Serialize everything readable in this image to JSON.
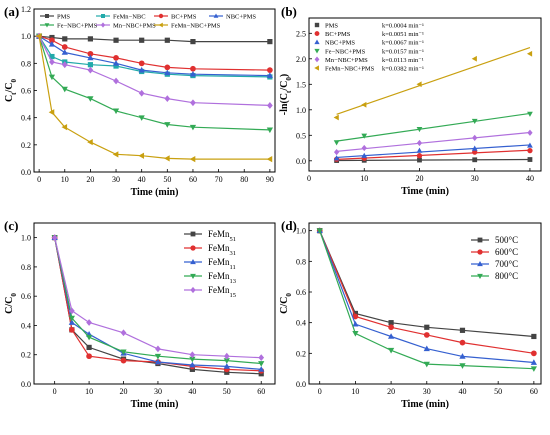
{
  "panels": [
    {
      "label": "(a)",
      "chart_data": {
        "type": "line",
        "xlabel": "Time (min)",
        "ylabel": "C_t/C_0",
        "xlim": [
          -2,
          92
        ],
        "ylim": [
          0,
          1.2
        ],
        "xticks": [
          0,
          10,
          20,
          30,
          40,
          50,
          60,
          70,
          80,
          90
        ],
        "yticks": [
          0.0,
          0.2,
          0.4,
          0.6,
          0.8,
          1.0,
          1.2
        ],
        "legend_position": "top",
        "series": [
          {
            "name": "PMS",
            "color": "#444444",
            "marker": "square",
            "x": [
              0,
              5,
              10,
              20,
              30,
              40,
              50,
              60,
              90
            ],
            "y": [
              1.0,
              0.99,
              0.98,
              0.98,
              0.97,
              0.97,
              0.97,
              0.96,
              0.96
            ]
          },
          {
            "name": "FeMn−NBC",
            "color": "#22aaaa",
            "marker": "square",
            "x": [
              0,
              5,
              10,
              20,
              30,
              40,
              50,
              60,
              90
            ],
            "y": [
              1.0,
              0.85,
              0.81,
              0.79,
              0.78,
              0.74,
              0.72,
              0.71,
              0.7
            ]
          },
          {
            "name": "BC+PMS",
            "color": "#e03030",
            "marker": "circle",
            "x": [
              0,
              5,
              10,
              20,
              30,
              40,
              50,
              60,
              90
            ],
            "y": [
              1.0,
              0.97,
              0.92,
              0.87,
              0.84,
              0.8,
              0.77,
              0.76,
              0.75
            ]
          },
          {
            "name": "NBC+PMS",
            "color": "#3560d0",
            "marker": "triangle-up",
            "x": [
              0,
              5,
              10,
              20,
              30,
              40,
              50,
              60,
              90
            ],
            "y": [
              1.0,
              0.94,
              0.88,
              0.84,
              0.8,
              0.75,
              0.73,
              0.72,
              0.71
            ]
          },
          {
            "name": "Fe−NBC+PMS",
            "color": "#33aa55",
            "marker": "triangle-down",
            "x": [
              0,
              5,
              10,
              20,
              30,
              40,
              50,
              60,
              90
            ],
            "y": [
              1.0,
              0.7,
              0.61,
              0.54,
              0.45,
              0.4,
              0.35,
              0.33,
              0.31
            ]
          },
          {
            "name": "Mn−NBC+PMS",
            "color": "#b070dd",
            "marker": "diamond",
            "x": [
              0,
              5,
              10,
              20,
              30,
              40,
              50,
              60,
              90
            ],
            "y": [
              1.0,
              0.81,
              0.79,
              0.75,
              0.67,
              0.58,
              0.54,
              0.51,
              0.49
            ]
          },
          {
            "name": "FeMn−NBC+PMS",
            "color": "#c9a010",
            "marker": "triangle-left",
            "x": [
              0,
              5,
              10,
              20,
              30,
              40,
              50,
              60,
              90
            ],
            "y": [
              1.0,
              0.44,
              0.33,
              0.22,
              0.13,
              0.12,
              0.1,
              0.095,
              0.095
            ]
          }
        ]
      }
    },
    {
      "label": "(b)",
      "chart_data": {
        "type": "scatter",
        "xlabel": "Time (min)",
        "ylabel": "-ln(C_t/C_0)",
        "xlim": [
          0,
          42
        ],
        "ylim": [
          -0.2,
          2.8
        ],
        "xticks": [
          0,
          10,
          20,
          30,
          40
        ],
        "yticks": [
          0.0,
          0.5,
          1.0,
          1.5,
          2.0,
          2.5
        ],
        "legend_position": "top-left",
        "series": [
          {
            "name": "PMS",
            "k": "k=0.0004 min⁻¹",
            "color": "#444444",
            "marker": "square",
            "x": [
              5,
              10,
              20,
              30,
              40
            ],
            "y": [
              0.005,
              0.01,
              0.015,
              0.02,
              0.025
            ]
          },
          {
            "name": "BC+PMS",
            "k": "k=0.0051 min⁻¹",
            "color": "#e03030",
            "marker": "circle",
            "x": [
              5,
              10,
              20,
              30,
              40
            ],
            "y": [
              0.03,
              0.05,
              0.1,
              0.17,
              0.2
            ]
          },
          {
            "name": "NBC+PMS",
            "k": "k=0.0067 min⁻¹",
            "color": "#3560d0",
            "marker": "triangle-up",
            "x": [
              5,
              10,
              20,
              30,
              40
            ],
            "y": [
              0.05,
              0.1,
              0.2,
              0.24,
              0.3
            ]
          },
          {
            "name": "Fe−NBC+PMS",
            "k": "k=0.0157 min⁻¹",
            "color": "#33aa55",
            "marker": "triangle-down",
            "x": [
              5,
              10,
              20,
              30,
              40
            ],
            "y": [
              0.36,
              0.49,
              0.62,
              0.78,
              0.92
            ]
          },
          {
            "name": "Mn−NBC+PMS",
            "k": "k=0.0113 min⁻¹",
            "color": "#b070dd",
            "marker": "diamond",
            "x": [
              5,
              10,
              20,
              30,
              40
            ],
            "y": [
              0.17,
              0.25,
              0.35,
              0.45,
              0.55
            ]
          },
          {
            "name": "FeMn−NBC+PMS",
            "k": "k=0.0382 min⁻¹",
            "color": "#c9a010",
            "marker": "triangle-left",
            "x": [
              5,
              10,
              20,
              30,
              40
            ],
            "y": [
              0.85,
              1.1,
              1.5,
              2.0,
              2.1
            ]
          }
        ]
      }
    },
    {
      "label": "(c)",
      "chart_data": {
        "type": "line",
        "xlabel": "Time (min)",
        "ylabel": "C/C_0",
        "xlim": [
          -6,
          64
        ],
        "ylim": [
          0,
          1.1
        ],
        "xticks": [
          0,
          10,
          20,
          30,
          40,
          50,
          60
        ],
        "yticks": [
          0.0,
          0.2,
          0.4,
          0.6,
          0.8,
          1.0
        ],
        "legend_position": "top-right",
        "series": [
          {
            "name": "FeMn",
            "sub": "51",
            "color": "#444444",
            "marker": "square",
            "x": [
              0,
              5,
              10,
              20,
              30,
              40,
              50,
              60
            ],
            "y": [
              1.0,
              0.37,
              0.25,
              0.17,
              0.14,
              0.1,
              0.08,
              0.07
            ]
          },
          {
            "name": "FeMn",
            "sub": "31",
            "color": "#e03030",
            "marker": "circle",
            "x": [
              0,
              5,
              10,
              20,
              30,
              40,
              50,
              60
            ],
            "y": [
              1.0,
              0.37,
              0.19,
              0.16,
              0.15,
              0.12,
              0.1,
              0.09
            ]
          },
          {
            "name": "FeMn",
            "sub": "11",
            "color": "#3560d0",
            "marker": "triangle-up",
            "x": [
              0,
              5,
              10,
              20,
              30,
              40,
              50,
              60
            ],
            "y": [
              1.0,
              0.42,
              0.34,
              0.21,
              0.15,
              0.13,
              0.12,
              0.1
            ]
          },
          {
            "name": "FeMn",
            "sub": "13",
            "color": "#33aa55",
            "marker": "triangle-down",
            "x": [
              0,
              5,
              10,
              20,
              30,
              40,
              50,
              60
            ],
            "y": [
              1.0,
              0.45,
              0.32,
              0.22,
              0.19,
              0.17,
              0.16,
              0.14
            ]
          },
          {
            "name": "FeMn",
            "sub": "15",
            "color": "#b070dd",
            "marker": "diamond",
            "x": [
              0,
              5,
              10,
              20,
              30,
              40,
              50,
              60
            ],
            "y": [
              1.0,
              0.5,
              0.42,
              0.35,
              0.24,
              0.2,
              0.19,
              0.18
            ]
          }
        ]
      }
    },
    {
      "label": "(d)",
      "chart_data": {
        "type": "line",
        "xlabel": "Time (min)",
        "ylabel": "C/C_0",
        "xlim": [
          -3,
          62
        ],
        "ylim": [
          0,
          1.05
        ],
        "xticks": [
          0,
          10,
          20,
          30,
          40,
          50,
          60
        ],
        "yticks": [
          0.0,
          0.2,
          0.4,
          0.6,
          0.8,
          1.0
        ],
        "legend_position": "top-right",
        "series": [
          {
            "name": "500°C",
            "color": "#444444",
            "marker": "square",
            "x": [
              0,
              10,
              20,
              30,
              40,
              60
            ],
            "y": [
              1.0,
              0.46,
              0.4,
              0.37,
              0.35,
              0.31
            ]
          },
          {
            "name": "600°C",
            "color": "#e03030",
            "marker": "circle",
            "x": [
              0,
              10,
              20,
              30,
              40,
              60
            ],
            "y": [
              1.0,
              0.44,
              0.37,
              0.32,
              0.27,
              0.2
            ]
          },
          {
            "name": "700°C",
            "color": "#3560d0",
            "marker": "triangle-up",
            "x": [
              0,
              10,
              20,
              30,
              40,
              60
            ],
            "y": [
              1.0,
              0.39,
              0.31,
              0.23,
              0.18,
              0.14
            ]
          },
          {
            "name": "800°C",
            "color": "#33aa55",
            "marker": "triangle-down",
            "x": [
              0,
              10,
              20,
              30,
              40,
              60
            ],
            "y": [
              1.0,
              0.33,
              0.22,
              0.13,
              0.12,
              0.1
            ]
          }
        ]
      }
    }
  ]
}
